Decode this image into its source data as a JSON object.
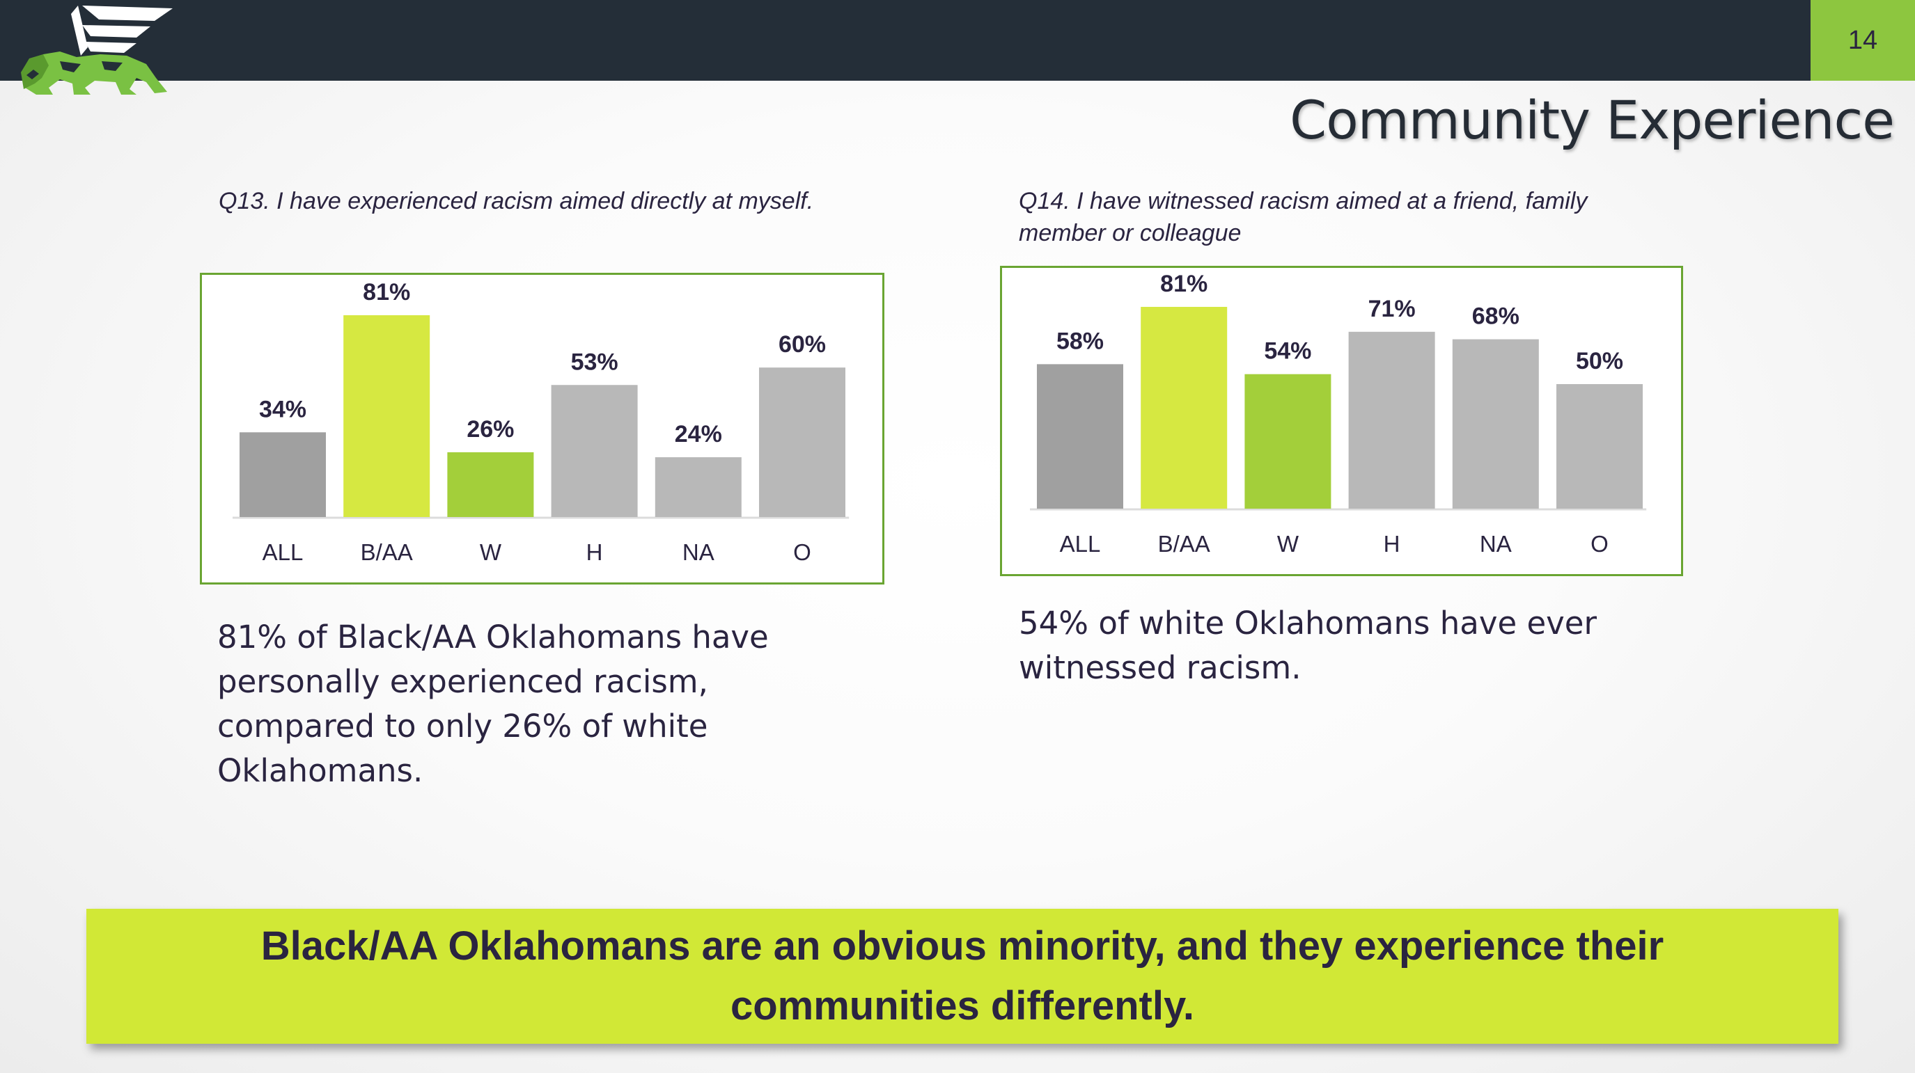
{
  "page": {
    "number": "14",
    "title": "Community Experience"
  },
  "colors": {
    "top_bar": "#242e38",
    "accent_green": "#8dc63f",
    "banner": "#d1e836",
    "text": "#2a2440",
    "bar_all": "#a0a0a0",
    "bar_baa": "#d6e841",
    "bar_w": "#a3cf3a",
    "bar_other": "#b8b8b8"
  },
  "logo": {
    "icon": "winged-lion-logo-icon"
  },
  "chart_data": [
    {
      "type": "bar",
      "title": "Q13. I have experienced racism aimed directly at myself.",
      "categories": [
        "ALL",
        "B/AA",
        "W",
        "H",
        "NA",
        "O"
      ],
      "values": [
        34,
        81,
        26,
        53,
        24,
        60
      ],
      "labels": [
        "34%",
        "81%",
        "26%",
        "53%",
        "24%",
        "60%"
      ],
      "ylim": [
        0,
        100
      ],
      "xlabel": "",
      "ylabel": "",
      "grid": false,
      "legend": "none"
    },
    {
      "type": "bar",
      "title": "Q14. I have witnessed racism aimed at a friend, family member or colleague",
      "categories": [
        "ALL",
        "B/AA",
        "W",
        "H",
        "NA",
        "O"
      ],
      "values": [
        58,
        81,
        54,
        71,
        68,
        50
      ],
      "labels": [
        "58%",
        "81%",
        "54%",
        "71%",
        "68%",
        "50%"
      ],
      "ylim": [
        0,
        100
      ],
      "xlabel": "",
      "ylabel": "",
      "grid": false,
      "legend": "none"
    }
  ],
  "findings": {
    "q13": "81% of Black/AA Oklahomans have personally experienced racism, compared to only 26% of white Oklahomans.",
    "q14": "54% of white Oklahomans have ever witnessed racism."
  },
  "banner": {
    "text": "Black/AA Oklahomans are an obvious minority, and they experience their communities differently."
  }
}
